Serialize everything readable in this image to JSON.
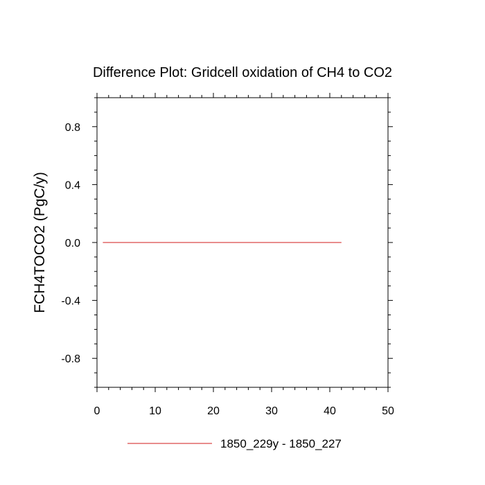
{
  "chart_data": {
    "type": "line",
    "title": "Difference Plot: Gridcell oxidation of CH4 to CO2",
    "xlabel": "",
    "ylabel": "FCH4TOCO2  (PgC/y)",
    "xlim": [
      0,
      50
    ],
    "ylim": [
      -1.0,
      1.0
    ],
    "x_ticks": [
      0,
      10,
      20,
      30,
      40,
      50
    ],
    "x_tick_labels": [
      "0",
      "10",
      "20",
      "30",
      "40",
      "50"
    ],
    "y_ticks": [
      -0.8,
      -0.4,
      0.0,
      0.4,
      0.8
    ],
    "y_tick_labels": [
      "-0.8",
      "-0.4",
      "0.0",
      "0.4",
      "0.8"
    ],
    "grid": false,
    "legend_position": "bottom",
    "series": [
      {
        "name": "1850_229y - 1850_227",
        "color": "#e06666",
        "x": [
          1,
          42
        ],
        "y": [
          0.0,
          0.0
        ]
      }
    ]
  }
}
